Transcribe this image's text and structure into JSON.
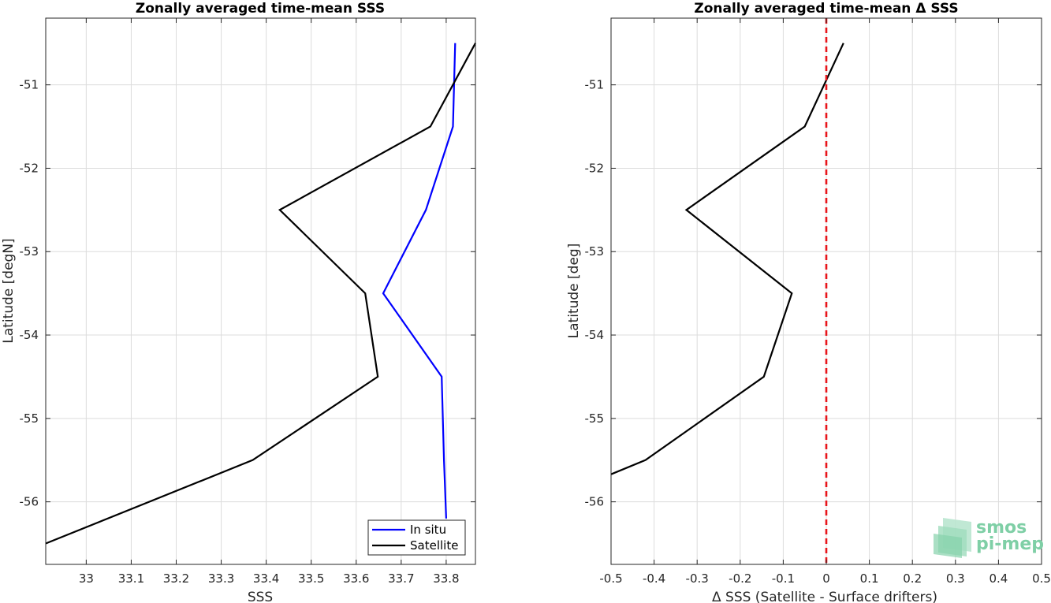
{
  "logo": {
    "line1": "smos",
    "line2": "pi-mep"
  },
  "chart_data": [
    {
      "type": "line",
      "title": "Zonally averaged time-mean SSS",
      "xlabel": "SSS",
      "ylabel": "Latitude [degN]",
      "xlim": [
        32.91,
        33.865
      ],
      "ylim": [
        -56.75,
        -50.2
      ],
      "xticks": [
        33,
        33.1,
        33.2,
        33.3,
        33.4,
        33.5,
        33.6,
        33.7,
        33.8
      ],
      "xtick_labels": [
        "33",
        "33.1",
        "33.2",
        "33.3",
        "33.4",
        "33.5",
        "33.6",
        "33.7",
        "33.8"
      ],
      "yticks": [
        -51,
        -52,
        -53,
        -54,
        -55,
        -56
      ],
      "ytick_labels": [
        "-51",
        "-52",
        "-53",
        "-54",
        "-55",
        "-56"
      ],
      "grid": true,
      "legend_position": "bottom-right",
      "series": [
        {
          "name": "In situ",
          "color": "#0000ff",
          "points": [
            [
              33.82,
              -50.5
            ],
            [
              33.815,
              -51.5
            ],
            [
              33.755,
              -52.5
            ],
            [
              33.66,
              -53.5
            ],
            [
              33.79,
              -54.5
            ],
            [
              33.795,
              -55.5
            ],
            [
              33.8,
              -56.2
            ]
          ]
        },
        {
          "name": "Satellite",
          "color": "#000000",
          "points": [
            [
              33.865,
              -50.5
            ],
            [
              33.765,
              -51.5
            ],
            [
              33.43,
              -52.5
            ],
            [
              33.62,
              -53.5
            ],
            [
              33.648,
              -54.5
            ],
            [
              33.37,
              -55.5
            ],
            [
              32.91,
              -56.5
            ]
          ]
        }
      ]
    },
    {
      "type": "line",
      "title": "Zonally averaged time-mean Δ SSS",
      "xlabel": "Δ SSS (Satellite - Surface drifters)",
      "ylabel": "Latitude [deg]",
      "xlim": [
        -0.5,
        0.5
      ],
      "ylim": [
        -56.75,
        -50.2
      ],
      "xticks": [
        -0.5,
        -0.4,
        -0.3,
        -0.2,
        -0.1,
        0,
        0.1,
        0.2,
        0.3,
        0.4,
        0.5
      ],
      "xtick_labels": [
        "-0.5",
        "-0.4",
        "-0.3",
        "-0.2",
        "-0.1",
        "0",
        "0.1",
        "0.2",
        "0.3",
        "0.4",
        "0.5"
      ],
      "yticks": [
        -51,
        -52,
        -53,
        -54,
        -55,
        -56
      ],
      "ytick_labels": [
        "-51",
        "-52",
        "-53",
        "-54",
        "-55",
        "-56"
      ],
      "grid": true,
      "reference_line": {
        "x": 0,
        "color": "#e8141a",
        "style": "dashed"
      },
      "series": [
        {
          "color": "#000000",
          "points": [
            [
              0.04,
              -50.5
            ],
            [
              -0.05,
              -51.5
            ],
            [
              -0.325,
              -52.5
            ],
            [
              -0.08,
              -53.5
            ],
            [
              -0.145,
              -54.5
            ],
            [
              -0.42,
              -55.5
            ],
            [
              -0.5,
              -55.67
            ]
          ]
        }
      ]
    }
  ]
}
